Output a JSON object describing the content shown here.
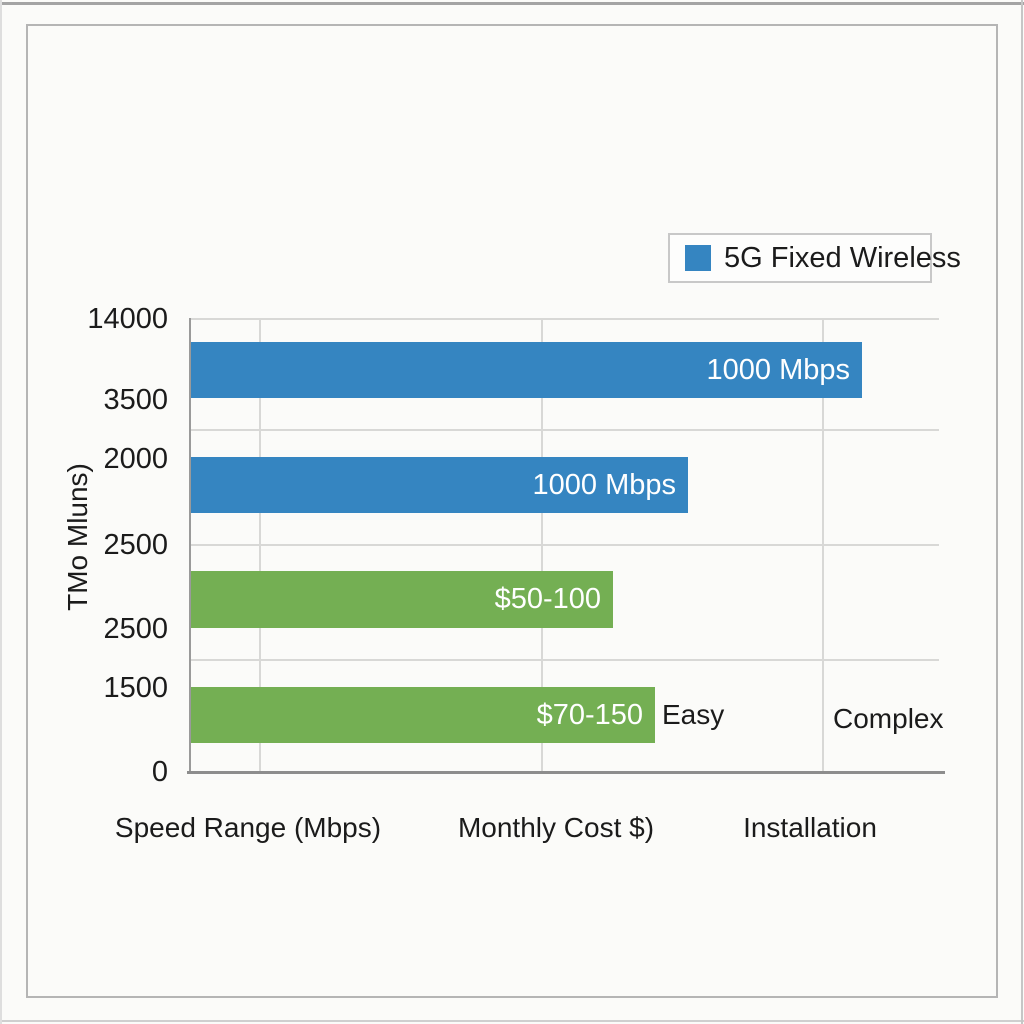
{
  "page": {
    "background": "#fbfbf9",
    "frame_border": "#b5b5b5"
  },
  "chart_data": {
    "type": "bar",
    "orientation": "horizontal",
    "title": "",
    "grid": true,
    "colors": {
      "blue": "#3585c1",
      "green": "#74af53"
    },
    "legend": {
      "position": "top-right",
      "items": [
        {
          "label": "5G Fixed Wireless",
          "color": "#3585c1"
        }
      ]
    },
    "y_axis": {
      "title": "TMo Mluns)",
      "tick_labels": [
        "14000",
        "3500",
        "2000",
        "2500",
        "2500",
        "1500",
        "0"
      ]
    },
    "x_axis": {
      "labels": [
        "Speed Range (Mbps)",
        "Monthly Cost $)",
        "Installation"
      ]
    },
    "bars": [
      {
        "row": 1,
        "label": "1000 Mbps",
        "series": "5G Fixed Wireless",
        "color": "#3585c1",
        "length_frac": 0.897
      },
      {
        "row": 2,
        "label": "1000 Mbps",
        "series": "5G Fixed Wireless",
        "color": "#3585c1",
        "length_frac": 0.664
      },
      {
        "row": 3,
        "label": "$50-100",
        "series": "other",
        "color": "#74af53",
        "length_frac": 0.564
      },
      {
        "row": 4,
        "label": "$70-150",
        "series": "other",
        "color": "#74af53",
        "length_frac": 0.62
      }
    ],
    "annotations": [
      {
        "text": "Easy"
      },
      {
        "text": "Complex"
      }
    ]
  }
}
